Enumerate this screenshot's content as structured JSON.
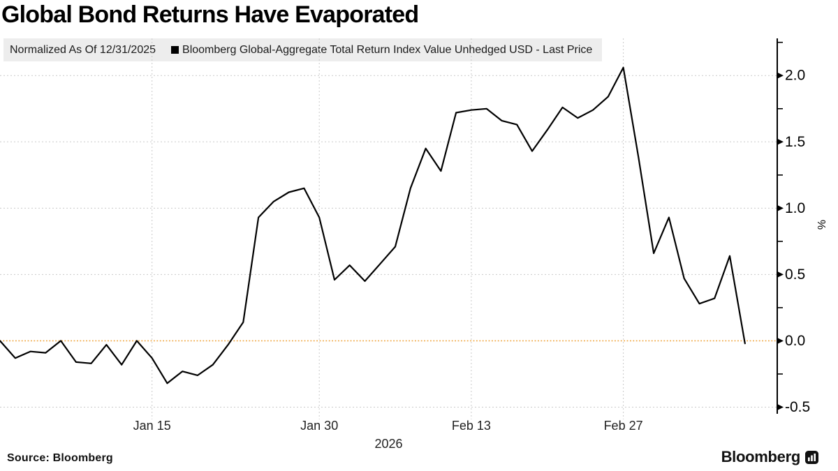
{
  "title": "Global Bond Returns Have Evaporated",
  "legend": {
    "normalized_label": "Normalized As Of 12/31/2025",
    "series_label": "Bloomberg Global-Aggregate Total Return Index Value Unhedged USD - Last Price",
    "series_color": "#000000"
  },
  "footer": {
    "source": "Source: Bloomberg",
    "brand": "Bloomberg"
  },
  "chart_data": {
    "type": "line",
    "title": "Global Bond Returns Have Evaporated",
    "series_name": "Bloomberg Global-Aggregate Total Return Index Value Unhedged USD - Last Price",
    "normalized_as_of": "12/31/2025",
    "unit": "%",
    "ylabel": "%",
    "x_axis_year": "2026",
    "grid": true,
    "legend_position": "top",
    "ylim": [
      -0.55,
      2.28
    ],
    "yticks_major": [
      2.0,
      1.5,
      1.0,
      0.5,
      0.0,
      -0.5
    ],
    "ytick_labels": [
      "2.0",
      "1.5",
      "1.0",
      "0.5",
      "0.0",
      "-0.5"
    ],
    "yticks_minor": [
      2.25,
      1.75,
      1.25,
      0.75,
      0.25,
      -0.25
    ],
    "zero_line_value": 0.0,
    "zero_line_color": "#efa43c",
    "grid_color": "#c9c9c9",
    "line_color": "#000000",
    "axis_color": "#000000",
    "xticks": [
      {
        "label": "Jan 15",
        "index": 10
      },
      {
        "label": "Jan 30",
        "index": 21
      },
      {
        "label": "Feb 13",
        "index": 31
      },
      {
        "label": "Feb 27",
        "index": 41
      }
    ],
    "x": [
      "2026-01-01",
      "2026-01-02",
      "2026-01-05",
      "2026-01-06",
      "2026-01-07",
      "2026-01-08",
      "2026-01-09",
      "2026-01-12",
      "2026-01-13",
      "2026-01-14",
      "2026-01-15",
      "2026-01-16",
      "2026-01-19",
      "2026-01-20",
      "2026-01-21",
      "2026-01-22",
      "2026-01-23",
      "2026-01-26",
      "2026-01-27",
      "2026-01-28",
      "2026-01-29",
      "2026-01-30",
      "2026-02-02",
      "2026-02-03",
      "2026-02-04",
      "2026-02-05",
      "2026-02-06",
      "2026-02-09",
      "2026-02-10",
      "2026-02-11",
      "2026-02-12",
      "2026-02-13",
      "2026-02-16",
      "2026-02-17",
      "2026-02-18",
      "2026-02-19",
      "2026-02-20",
      "2026-02-23",
      "2026-02-24",
      "2026-02-25",
      "2026-02-26",
      "2026-02-27",
      "2026-03-02",
      "2026-03-03",
      "2026-03-04",
      "2026-03-05",
      "2026-03-06",
      "2026-03-09",
      "2026-03-10",
      "2026-03-11"
    ],
    "values": [
      0.0,
      -0.13,
      -0.08,
      -0.09,
      0.0,
      -0.16,
      -0.17,
      -0.03,
      -0.18,
      0.0,
      -0.13,
      -0.32,
      -0.23,
      -0.26,
      -0.18,
      -0.03,
      0.14,
      0.93,
      1.05,
      1.12,
      1.15,
      0.93,
      0.46,
      0.57,
      0.45,
      0.58,
      0.71,
      1.15,
      1.45,
      1.28,
      1.72,
      1.74,
      1.75,
      1.66,
      1.63,
      1.43,
      1.59,
      1.76,
      1.68,
      1.74,
      1.84,
      2.06,
      1.38,
      0.66,
      0.93,
      0.47,
      0.28,
      0.32,
      0.64,
      -0.02
    ]
  }
}
